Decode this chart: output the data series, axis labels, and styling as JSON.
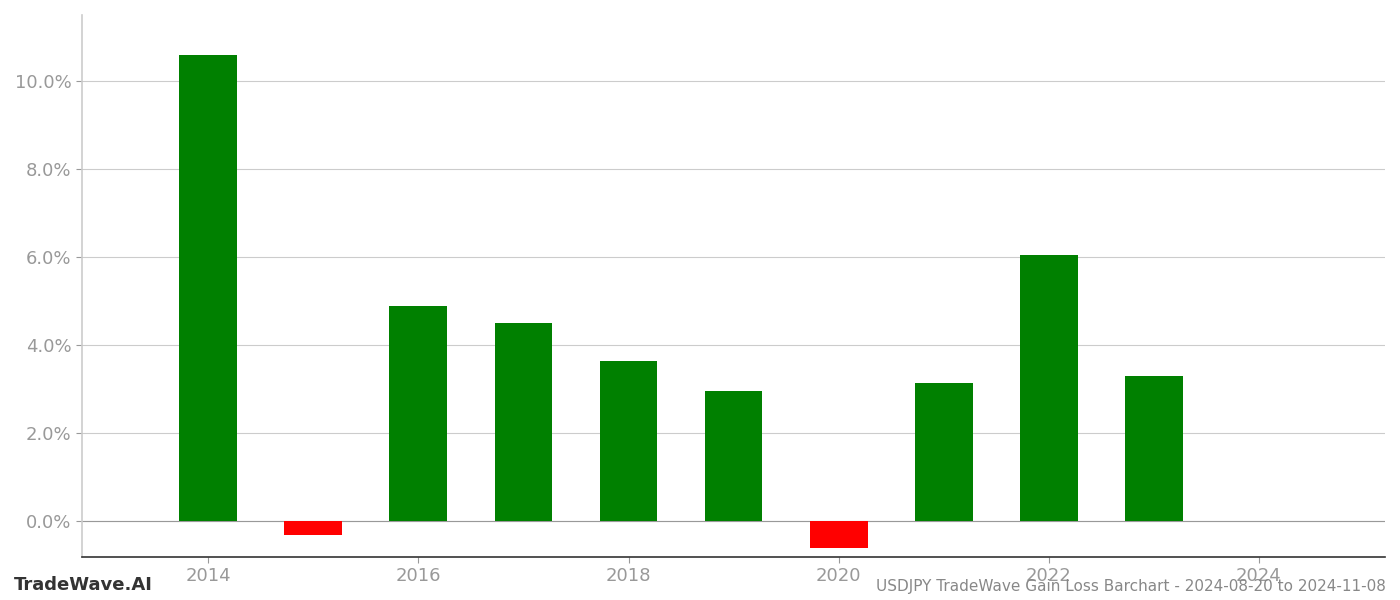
{
  "years": [
    2014,
    2015,
    2016,
    2017,
    2018,
    2019,
    2020,
    2021,
    2022,
    2023
  ],
  "values": [
    0.106,
    -0.003,
    0.049,
    0.045,
    0.0365,
    0.0295,
    -0.006,
    0.0315,
    0.0605,
    0.033
  ],
  "bar_colors_positive": "#008000",
  "bar_colors_negative": "#ff0000",
  "background_color": "#ffffff",
  "grid_color": "#cccccc",
  "ylabel_color": "#999999",
  "xlabel_color": "#999999",
  "title_text": "USDJPY TradeWave Gain Loss Barchart - 2024-08-20 to 2024-11-08",
  "watermark_text": "TradeWave.AI",
  "ylim_min": -0.008,
  "ylim_max": 0.115,
  "bar_width": 0.55,
  "title_fontsize": 11,
  "tick_fontsize": 13,
  "watermark_fontsize": 13,
  "xtick_fontsize": 13,
  "xticks": [
    2014,
    2016,
    2018,
    2020,
    2022,
    2024
  ],
  "xlim_min": 2012.8,
  "xlim_max": 2025.2
}
